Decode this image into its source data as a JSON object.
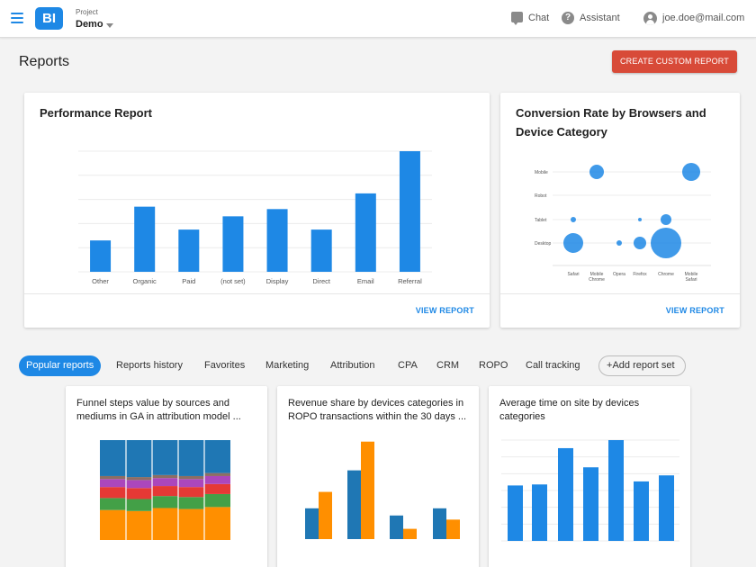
{
  "header": {
    "logo_text": "BI",
    "project_label": "Project",
    "project_name": "Demo",
    "chat": "Chat",
    "assistant": "Assistant",
    "user_email": "joe.doe@mail.com"
  },
  "page": {
    "title": "Reports",
    "create_button": "CREATE CUSTOM REPORT"
  },
  "performance_card": {
    "title": "Performance Report",
    "view": "VIEW REPORT"
  },
  "conversion_card": {
    "title_line1": "Conversion Rate by Browsers and",
    "title_line2": "Device Category",
    "view": "VIEW REPORT"
  },
  "tabs": {
    "items": [
      "Popular reports",
      "Reports history",
      "Favorites",
      "Marketing",
      "Attribution",
      "CPA",
      "CRM",
      "ROPO",
      "Call tracking"
    ],
    "add": "Add report set"
  },
  "mini_cards": [
    {
      "line1": "Funnel steps value by sources and",
      "line2": "mediums in GA in attribution model ..."
    },
    {
      "line1": "Revenue share by devices categories in",
      "line2": "ROPO transactions within the 30 days ..."
    },
    {
      "line1": "Average time on site by devices",
      "line2": "categories"
    }
  ],
  "colors": {
    "primary": "#1e88e5",
    "accent": "#d84a38",
    "orange": "#ff8f00",
    "steel": "#1f77b4"
  },
  "chart_data": [
    {
      "type": "bar",
      "title": "Performance Report",
      "categories": [
        "Other",
        "Organic",
        "Paid",
        "(not set)",
        "Display",
        "Direct",
        "Email",
        "Referral"
      ],
      "values": [
        13,
        27,
        17.5,
        23,
        26,
        17.5,
        32.5,
        50
      ],
      "ylim": [
        0,
        50
      ],
      "grid": true
    },
    {
      "type": "scatter",
      "title": "Conversion Rate by Browsers and Device Category",
      "categories": [
        "Safari",
        "Mobile Chrome",
        "Opera",
        "Firefox",
        "Chrome",
        "Mobile Safari"
      ],
      "y_categories": [
        "Mobile",
        "Robot",
        "Tablet",
        "Desktop"
      ],
      "points": [
        {
          "x": "Mobile Chrome",
          "y": "Mobile",
          "size": 8
        },
        {
          "x": "Mobile Safari",
          "y": "Mobile",
          "size": 10
        },
        {
          "x": "Safari",
          "y": "Tablet",
          "size": 3
        },
        {
          "x": "Firefox",
          "y": "Tablet",
          "size": 2
        },
        {
          "x": "Chrome",
          "y": "Tablet",
          "size": 6
        },
        {
          "x": "Safari",
          "y": "Desktop",
          "size": 11
        },
        {
          "x": "Opera",
          "y": "Desktop",
          "size": 3
        },
        {
          "x": "Firefox",
          "y": "Desktop",
          "size": 7
        },
        {
          "x": "Chrome",
          "y": "Desktop",
          "size": 17
        }
      ]
    },
    {
      "type": "bar",
      "stacked": true,
      "percent": true,
      "categories": [
        "1",
        "2",
        "3",
        "4",
        "5"
      ],
      "series": [
        {
          "color": "#ff8f00",
          "values": [
            30,
            29,
            32,
            31,
            33
          ]
        },
        {
          "color": "#43a047",
          "values": [
            12,
            12,
            12,
            12,
            13
          ]
        },
        {
          "color": "#e53935",
          "values": [
            11,
            11,
            10,
            10,
            10
          ]
        },
        {
          "color": "#ab47bc",
          "values": [
            8,
            8,
            8,
            8,
            8
          ]
        },
        {
          "color": "#8d6e63",
          "values": [
            3,
            3,
            3,
            3,
            3
          ]
        },
        {
          "color": "#1f77b4",
          "values": [
            36,
            37,
            35,
            36,
            33
          ]
        }
      ]
    },
    {
      "type": "bar",
      "categories": [
        "1",
        "2",
        "3",
        "4"
      ],
      "series": [
        {
          "color": "#1f77b4",
          "values": [
            30,
            67,
            23,
            30
          ]
        },
        {
          "color": "#ff8f00",
          "values": [
            46,
            95,
            10,
            19
          ]
        }
      ],
      "ylim": [
        0,
        100
      ]
    },
    {
      "type": "bar",
      "categories": [
        "1",
        "2",
        "3",
        "4",
        "5",
        "6",
        "7"
      ],
      "values": [
        55,
        56,
        92,
        73,
        100,
        59,
        65
      ],
      "ylim": [
        0,
        100
      ],
      "grid": true
    }
  ]
}
